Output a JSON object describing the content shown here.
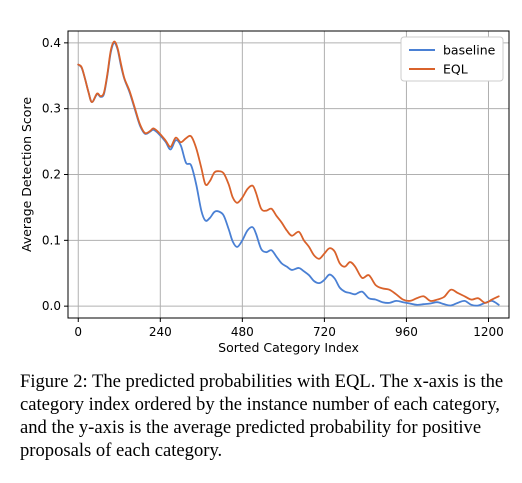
{
  "chart_data": {
    "type": "line",
    "title": "",
    "xlabel": "Sorted Category Index",
    "ylabel": "Average Detection Score",
    "xlim": [
      -30,
      1260
    ],
    "ylim": [
      -0.018,
      0.418
    ],
    "xticks": [
      0,
      240,
      480,
      720,
      960,
      1200
    ],
    "yticks": [
      0.0,
      0.1,
      0.2,
      0.3,
      0.4
    ],
    "ytick_labels": [
      "0.0",
      "0.1",
      "0.2",
      "0.3",
      "0.4"
    ],
    "grid": true,
    "legend_position": "top-right",
    "series": [
      {
        "name": "baseline",
        "color": "#4a80d4",
        "x": [
          0,
          10,
          20,
          30,
          40,
          55,
          65,
          75,
          85,
          95,
          105,
          115,
          125,
          135,
          150,
          165,
          180,
          195,
          210,
          220,
          235,
          255,
          270,
          285,
          300,
          315,
          330,
          345,
          360,
          372,
          385,
          398,
          410,
          425,
          440,
          452,
          465,
          480,
          495,
          510,
          520,
          535,
          550,
          565,
          580,
          595,
          610,
          625,
          645,
          660,
          675,
          690,
          705,
          720,
          735,
          750,
          765,
          780,
          795,
          810,
          830,
          850,
          870,
          890,
          910,
          930,
          950,
          970,
          990,
          1010,
          1030,
          1050,
          1070,
          1090,
          1110,
          1130,
          1150,
          1170,
          1190,
          1210,
          1230
        ],
        "y": [
          0.367,
          0.362,
          0.345,
          0.325,
          0.31,
          0.322,
          0.318,
          0.322,
          0.35,
          0.385,
          0.4,
          0.39,
          0.365,
          0.345,
          0.325,
          0.3,
          0.275,
          0.262,
          0.265,
          0.268,
          0.262,
          0.25,
          0.238,
          0.252,
          0.244,
          0.218,
          0.214,
          0.185,
          0.145,
          0.13,
          0.134,
          0.143,
          0.144,
          0.138,
          0.117,
          0.098,
          0.09,
          0.1,
          0.115,
          0.12,
          0.11,
          0.087,
          0.082,
          0.085,
          0.075,
          0.065,
          0.06,
          0.055,
          0.058,
          0.053,
          0.047,
          0.038,
          0.035,
          0.04,
          0.048,
          0.042,
          0.028,
          0.022,
          0.02,
          0.018,
          0.022,
          0.012,
          0.01,
          0.006,
          0.005,
          0.008,
          0.006,
          0.004,
          0.002,
          0.003,
          0.004,
          0.006,
          0.003,
          0.001,
          0.005,
          0.008,
          0.002,
          0.001,
          0.005,
          0.008,
          0.002
        ]
      },
      {
        "name": "EQL",
        "color": "#d9622b",
        "x": [
          0,
          10,
          20,
          30,
          40,
          55,
          65,
          75,
          85,
          95,
          105,
          115,
          125,
          135,
          150,
          165,
          180,
          195,
          210,
          220,
          235,
          255,
          270,
          285,
          300,
          315,
          330,
          345,
          360,
          372,
          385,
          398,
          410,
          425,
          440,
          452,
          465,
          480,
          495,
          510,
          520,
          535,
          550,
          565,
          580,
          595,
          610,
          625,
          645,
          660,
          675,
          690,
          705,
          720,
          735,
          750,
          765,
          780,
          795,
          810,
          830,
          850,
          870,
          890,
          910,
          930,
          950,
          970,
          990,
          1010,
          1030,
          1050,
          1070,
          1090,
          1110,
          1130,
          1150,
          1170,
          1190,
          1210,
          1230
        ],
        "y": [
          0.367,
          0.363,
          0.345,
          0.325,
          0.31,
          0.323,
          0.319,
          0.324,
          0.352,
          0.388,
          0.402,
          0.392,
          0.368,
          0.346,
          0.327,
          0.302,
          0.277,
          0.263,
          0.266,
          0.27,
          0.264,
          0.252,
          0.242,
          0.256,
          0.249,
          0.255,
          0.258,
          0.24,
          0.21,
          0.185,
          0.19,
          0.203,
          0.205,
          0.202,
          0.185,
          0.165,
          0.157,
          0.165,
          0.178,
          0.183,
          0.172,
          0.148,
          0.145,
          0.148,
          0.137,
          0.127,
          0.115,
          0.107,
          0.113,
          0.1,
          0.09,
          0.077,
          0.072,
          0.08,
          0.088,
          0.083,
          0.065,
          0.06,
          0.067,
          0.06,
          0.043,
          0.047,
          0.032,
          0.027,
          0.025,
          0.018,
          0.01,
          0.008,
          0.012,
          0.015,
          0.008,
          0.01,
          0.014,
          0.025,
          0.02,
          0.015,
          0.01,
          0.012,
          0.005,
          0.01,
          0.015
        ]
      }
    ]
  },
  "caption": "Figure 2: The predicted probabilities with EQL. The x-axis is the category index ordered by the instance number of each category, and the y-axis is the average predicted probability for positive proposals of each category."
}
